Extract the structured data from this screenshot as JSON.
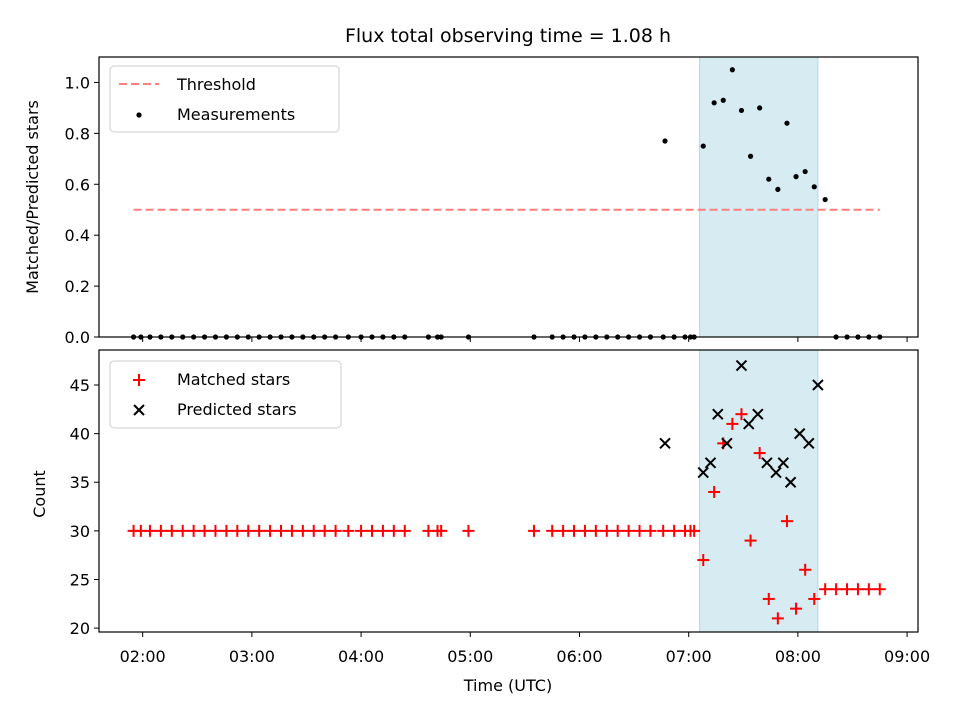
{
  "chart_data": [
    {
      "type": "scatter",
      "title": "Flux total observing time = 1.08 h",
      "xlabel": "",
      "ylabel": "Matched/Predicted stars",
      "ylim": [
        0,
        1.1
      ],
      "yticks": [
        "0.0",
        "0.2",
        "0.4",
        "0.6",
        "0.8",
        "1.0"
      ],
      "ytick_values": [
        0,
        0.2,
        0.4,
        0.6,
        0.8,
        1.0
      ],
      "legend": {
        "position": "top-left",
        "entries": [
          "Threshold",
          "Measurements"
        ]
      },
      "threshold": {
        "name": "Threshold",
        "value": 0.5,
        "x_start": "01:55",
        "x_end": "08:45",
        "color": "#ff7f7f"
      },
      "shaded_region": {
        "x_start": "07:06",
        "x_end": "08:11",
        "color": "#add8e6"
      },
      "series": [
        {
          "name": "Measurements",
          "color": "#000000",
          "x": [
            "01:55",
            "01:59",
            "02:04",
            "02:10",
            "02:16",
            "02:22",
            "02:28",
            "02:34",
            "02:40",
            "02:46",
            "02:52",
            "02:58",
            "03:04",
            "03:10",
            "03:16",
            "03:22",
            "03:28",
            "03:34",
            "03:40",
            "03:46",
            "03:53",
            "04:00",
            "04:06",
            "04:12",
            "04:18",
            "04:24",
            "04:37",
            "04:42",
            "04:44",
            "04:59",
            "05:35",
            "05:45",
            "05:51",
            "05:57",
            "06:03",
            "06:09",
            "06:15",
            "06:21",
            "06:27",
            "06:33",
            "06:39",
            "06:46",
            "06:52",
            "06:58",
            "07:01",
            "07:03",
            "06:47",
            "07:08",
            "07:14",
            "07:19",
            "07:24",
            "07:29",
            "07:34",
            "07:39",
            "07:44",
            "07:49",
            "07:54",
            "07:59",
            "08:04",
            "08:09",
            "08:15",
            "08:21",
            "08:27",
            "08:33",
            "08:39",
            "08:45"
          ],
          "values": [
            0,
            0,
            0,
            0,
            0,
            0,
            0,
            0,
            0,
            0,
            0,
            0,
            0,
            0,
            0,
            0,
            0,
            0,
            0,
            0,
            0,
            0,
            0,
            0,
            0,
            0,
            0,
            0,
            0,
            0,
            0,
            0,
            0,
            0,
            0,
            0,
            0,
            0,
            0,
            0,
            0,
            0,
            0,
            0,
            0,
            0,
            0.77,
            0.75,
            0.92,
            0.93,
            1.05,
            0.89,
            0.71,
            0.9,
            0.62,
            0.58,
            0.84,
            0.63,
            0.65,
            0.59,
            0.54,
            0,
            0,
            0,
            0,
            0
          ]
        }
      ]
    },
    {
      "type": "scatter",
      "title": "",
      "xlabel": "Time (UTC)",
      "ylabel": "Count",
      "ylim": [
        19.6,
        48.6
      ],
      "yticks": [
        "20",
        "25",
        "30",
        "35",
        "40",
        "45"
      ],
      "ytick_values": [
        20,
        25,
        30,
        35,
        40,
        45
      ],
      "xlim": [
        "01:36",
        "09:06"
      ],
      "xticks": [
        "02:00",
        "03:00",
        "04:00",
        "05:00",
        "06:00",
        "07:00",
        "08:00",
        "09:00"
      ],
      "legend": {
        "position": "top-left",
        "entries": [
          "Matched stars",
          "Predicted stars"
        ]
      },
      "shaded_region": {
        "x_start": "07:06",
        "x_end": "08:11",
        "color": "#add8e6"
      },
      "series": [
        {
          "name": "Matched stars",
          "color": "#ff0000",
          "x": [
            "01:55",
            "01:59",
            "02:04",
            "02:10",
            "02:16",
            "02:22",
            "02:28",
            "02:34",
            "02:40",
            "02:46",
            "02:52",
            "02:58",
            "03:04",
            "03:10",
            "03:16",
            "03:22",
            "03:28",
            "03:34",
            "03:40",
            "03:46",
            "03:53",
            "04:00",
            "04:06",
            "04:12",
            "04:18",
            "04:24",
            "04:37",
            "04:42",
            "04:44",
            "04:59",
            "05:35",
            "05:45",
            "05:51",
            "05:57",
            "06:03",
            "06:09",
            "06:15",
            "06:21",
            "06:27",
            "06:33",
            "06:39",
            "06:46",
            "06:52",
            "06:58",
            "07:01",
            "07:03",
            "07:08",
            "07:14",
            "07:19",
            "07:24",
            "07:29",
            "07:34",
            "07:39",
            "07:44",
            "07:49",
            "07:54",
            "07:59",
            "08:04",
            "08:09",
            "08:15",
            "08:21",
            "08:27",
            "08:33",
            "08:39",
            "08:45"
          ],
          "values": [
            30,
            30,
            30,
            30,
            30,
            30,
            30,
            30,
            30,
            30,
            30,
            30,
            30,
            30,
            30,
            30,
            30,
            30,
            30,
            30,
            30,
            30,
            30,
            30,
            30,
            30,
            30,
            30,
            30,
            30,
            30,
            30,
            30,
            30,
            30,
            30,
            30,
            30,
            30,
            30,
            30,
            30,
            30,
            30,
            30,
            30,
            27,
            34,
            39,
            41,
            42,
            29,
            38,
            23,
            21,
            31,
            22,
            26,
            23,
            24,
            24,
            24,
            24,
            24,
            24
          ]
        },
        {
          "name": "Predicted stars",
          "color": "#000000",
          "x": [
            "06:47",
            "07:08",
            "07:12",
            "07:16",
            "07:21",
            "07:29",
            "07:33",
            "07:38",
            "07:43",
            "07:48",
            "07:52",
            "07:56",
            "08:01",
            "08:06",
            "08:11"
          ],
          "values": [
            39,
            36,
            37,
            42,
            39,
            47,
            41,
            42,
            37,
            36,
            37,
            35,
            40,
            39,
            45
          ]
        }
      ]
    }
  ]
}
